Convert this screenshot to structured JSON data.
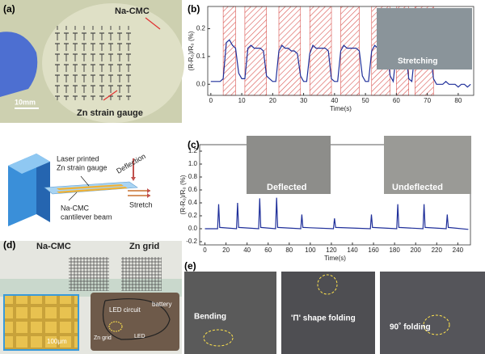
{
  "panels": {
    "a": {
      "label": "(a)",
      "material": "Na-CMC",
      "scale": "10mm",
      "gauge": "Zn strain gauge"
    },
    "b": {
      "label": "(b)",
      "inset": "Stretching"
    },
    "schematic": {
      "printed_1": "Laser printed",
      "printed_2": "Zn strain gauge",
      "beam_1": "Na-CMC",
      "beam_2": "cantilever beam",
      "deflection": "Deflection",
      "stretch": "Stretch"
    },
    "c": {
      "label": "(c)",
      "inset_1": "Deflected",
      "inset_2": "Undeflected"
    },
    "d": {
      "label": "(d)",
      "material": "Na-CMC",
      "grid": "Zn grid",
      "scale": "100μm",
      "circuit": "LED circuit",
      "battery": "battery",
      "grid_2": "Zn grid",
      "led": "LED"
    },
    "e": {
      "label": "(e)",
      "photo_1": "Bending",
      "photo_2": "'Π' shape folding",
      "photo_3": "90˚ folding"
    }
  },
  "chart_data": [
    {
      "type": "line",
      "x_label": "Time(s)",
      "y_label": "(R-R₀)/R₀ (%)",
      "x": [
        0,
        1,
        2,
        3,
        4,
        5,
        6,
        7,
        8,
        9,
        10,
        11,
        12,
        13,
        14,
        15,
        16,
        17,
        18,
        19,
        20,
        21,
        22,
        23,
        24,
        25,
        26,
        27,
        28,
        29,
        30,
        31,
        32,
        33,
        34,
        35,
        36,
        37,
        38,
        39,
        40,
        41,
        42,
        43,
        44,
        45,
        46,
        47,
        48,
        49,
        50,
        51,
        52,
        53,
        54,
        55,
        56,
        57,
        58,
        59,
        60,
        61,
        62,
        63,
        64,
        65,
        66,
        67,
        68,
        69,
        70,
        71,
        72,
        73,
        74,
        75,
        76,
        77,
        78,
        79,
        80,
        81,
        82,
        83,
        84
      ],
      "series": [
        {
          "color": "#1f2f9a",
          "values": [
            0.01,
            0.01,
            0.01,
            0.01,
            0.02,
            0.15,
            0.16,
            0.14,
            0.13,
            0.04,
            0.02,
            0.02,
            0.13,
            0.14,
            0.13,
            0.13,
            0.13,
            0.12,
            0.03,
            0.02,
            0.01,
            0.01,
            0.12,
            0.14,
            0.13,
            0.13,
            0.12,
            0.12,
            0.11,
            0.03,
            0.01,
            0.01,
            0.11,
            0.14,
            0.13,
            0.13,
            0.13,
            0.13,
            0.12,
            0.02,
            0.01,
            0.01,
            0.12,
            0.14,
            0.13,
            0.13,
            0.13,
            0.13,
            0.12,
            0.03,
            0.01,
            0.01,
            0.12,
            0.14,
            0.13,
            0.13,
            0.13,
            0.12,
            0.03,
            0.01,
            0.12,
            0.13,
            0.12,
            0.12,
            0.02,
            0.01,
            0.12,
            0.13,
            0.13,
            0.12,
            0.12,
            0.11,
            0.02,
            0.0,
            0.0,
            0.0,
            0.01,
            0.0,
            0.0,
            0.0,
            -0.01,
            0.0,
            0.0,
            -0.01,
            0.0
          ]
        }
      ],
      "shaded_intervals": [
        [
          4,
          8
        ],
        [
          11,
          18
        ],
        [
          22,
          29
        ],
        [
          32,
          39
        ],
        [
          42,
          48
        ],
        [
          52,
          58
        ],
        [
          60,
          64
        ],
        [
          66,
          72
        ]
      ],
      "shade_color": "#d9534f",
      "xlim": [
        -1,
        85
      ],
      "xticks": [
        0,
        10,
        20,
        30,
        40,
        50,
        60,
        70,
        80
      ],
      "ylim": [
        -0.04,
        0.28
      ],
      "yticks": [
        {
          "value": 0,
          "label": "0.0"
        },
        0.1,
        0.2
      ]
    },
    {
      "type": "line",
      "x_label": "Time(s)",
      "y_label": "(R-R₀)/R₀ (%)",
      "x": [
        0,
        12,
        13,
        14,
        30,
        31,
        32,
        51,
        52,
        53,
        67,
        68,
        69,
        91,
        92,
        93,
        122,
        123,
        124,
        157,
        158,
        159,
        182,
        183,
        184,
        207,
        208,
        209,
        229,
        230,
        231,
        250
      ],
      "series": [
        {
          "color": "#1f2f9a",
          "values": [
            0,
            0,
            0.38,
            0.02,
            0,
            0.4,
            0.02,
            0,
            0.47,
            0.02,
            0,
            0.48,
            0.02,
            0,
            0.22,
            0.02,
            0,
            0.16,
            0.02,
            0,
            0.22,
            0.02,
            0,
            0.38,
            0.02,
            0,
            0.38,
            0.02,
            0,
            0.22,
            0.02,
            -0.01
          ]
        }
      ],
      "xlim": [
        -5,
        252
      ],
      "xticks": [
        0,
        20,
        40,
        60,
        80,
        100,
        120,
        140,
        160,
        180,
        200,
        220,
        240
      ],
      "ylim": [
        -0.25,
        1.3
      ],
      "yticks": [
        -0.2,
        {
          "value": 0,
          "label": "0.0"
        },
        0.2,
        0.4,
        0.6,
        0.8,
        {
          "value": 1,
          "label": "1.0"
        },
        1.2
      ]
    }
  ]
}
